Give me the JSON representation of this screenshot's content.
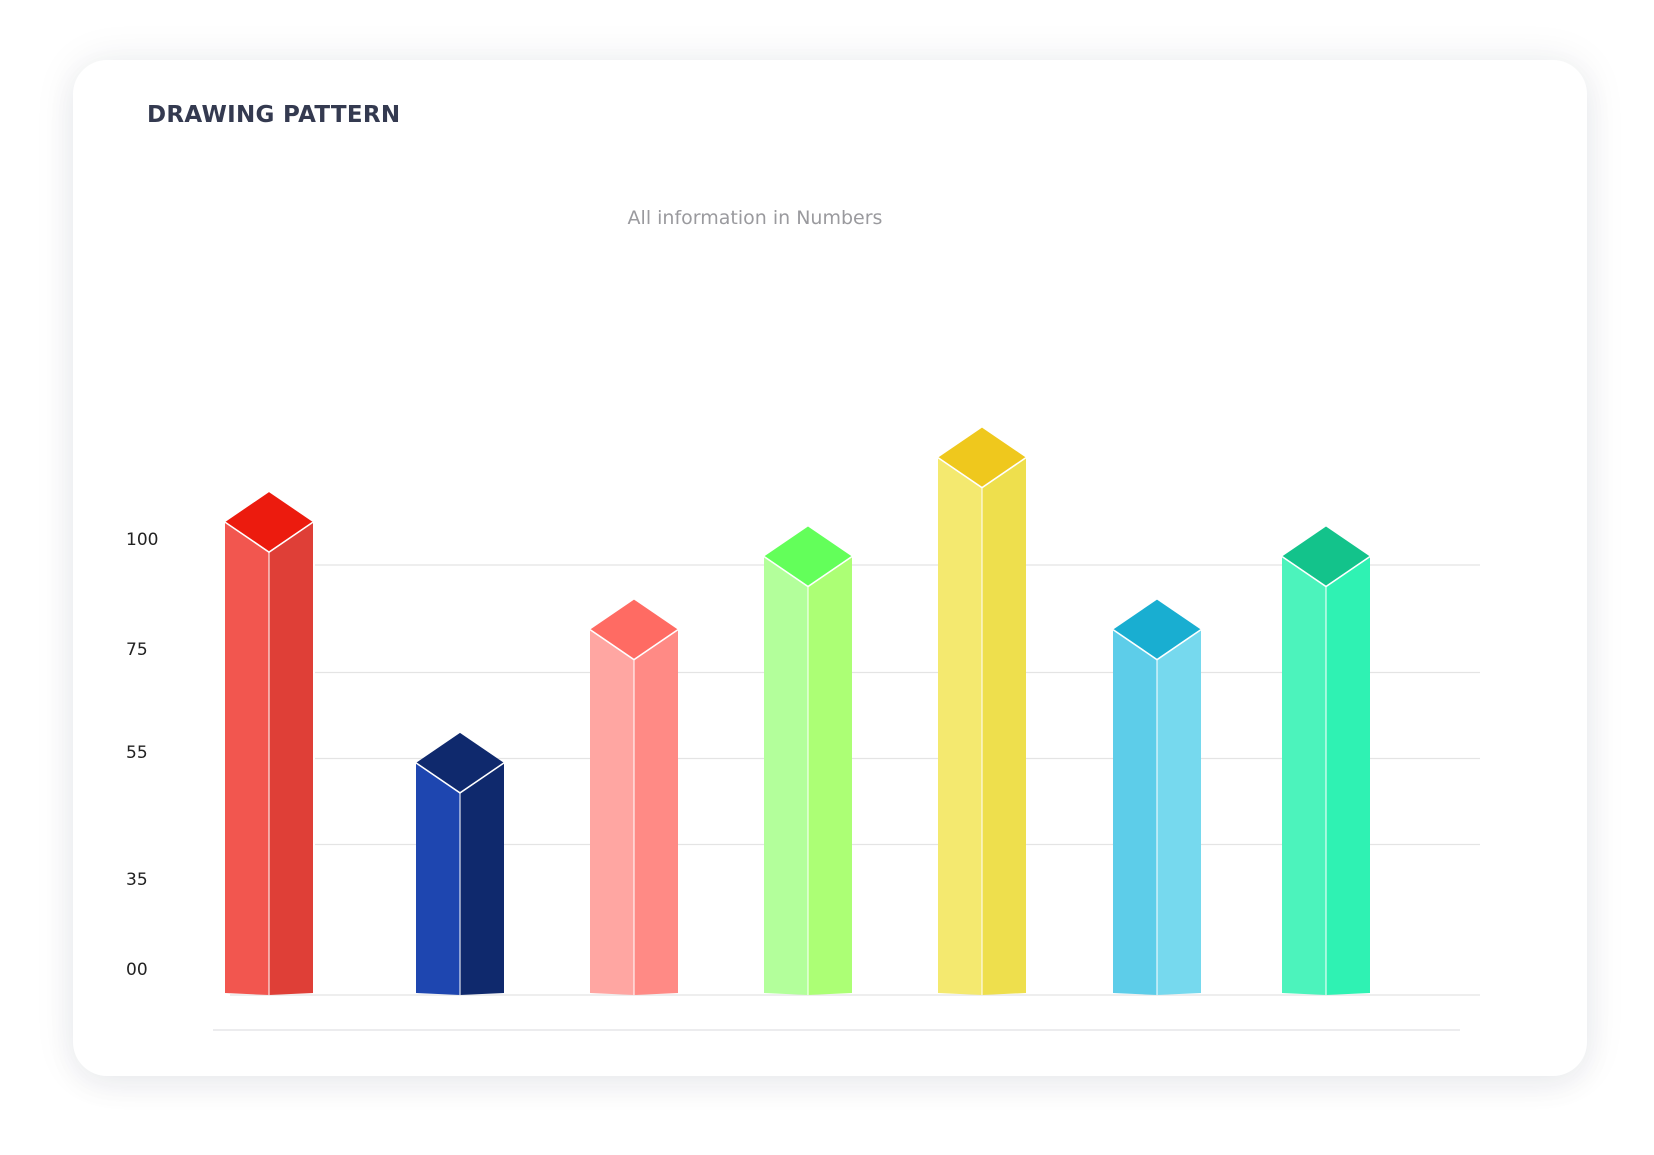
{
  "card": {
    "title": "DRAWING PATTERN"
  },
  "chart_data": {
    "type": "bar",
    "subtitle": "All information in Numbers",
    "xlabel": "",
    "ylabel": "",
    "y_ticks": [
      "100",
      "75",
      "55",
      "35",
      "00"
    ],
    "y_tick_values": [
      100,
      75,
      55,
      35,
      0
    ],
    "grid": true,
    "legend": "none",
    "style": "3d-isometric",
    "categories": [
      "",
      "",
      "",
      "",
      "",
      "",
      ""
    ],
    "values": [
      103,
      47,
      78,
      95,
      118,
      78,
      95
    ],
    "bar_colors": [
      {
        "left": "#f2564f",
        "right": "#df3f37",
        "top": "#ec1b0e"
      },
      {
        "left": "#1e46b0",
        "right": "#0f296d",
        "top": "#0f296d"
      },
      {
        "left": "#ffa6a2",
        "right": "#ff8a85",
        "top": "#ff6b63"
      },
      {
        "left": "#b3ff9b",
        "right": "#acff75",
        "top": "#63ff5a"
      },
      {
        "left": "#f4e96f",
        "right": "#eedf4d",
        "top": "#efc81d"
      },
      {
        "left": "#5dcde9",
        "right": "#76d9ee",
        "top": "#19aed1"
      },
      {
        "left": "#4cf3bc",
        "right": "#2ff2b3",
        "top": "#13c38b"
      }
    ],
    "grid_color": "#e4e4e4"
  }
}
